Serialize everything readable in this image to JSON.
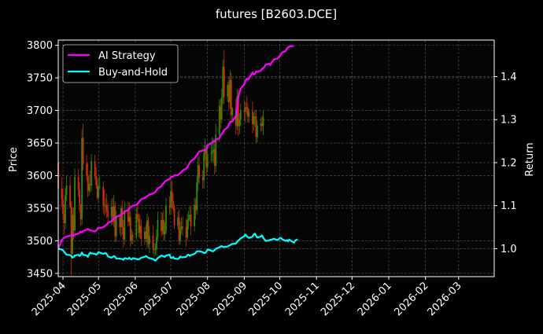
{
  "chart_data": {
    "type": "line",
    "title": "futures [B2603.DCE]",
    "ylabel": "Price",
    "y2label": "Return",
    "ylim": [
      3445,
      3808
    ],
    "y2lim": [
      0.935,
      1.485
    ],
    "xlim": [
      "2025-03-28",
      "2026-03-31"
    ],
    "grid": true,
    "legend_position": "top-left",
    "x_ticks": [
      "2025-04-01",
      "2025-05-01",
      "2025-06-01",
      "2025-07-01",
      "2025-08-01",
      "2025-09-01",
      "2025-10-01",
      "2025-11-01",
      "2025-12-01",
      "2026-01-01",
      "2026-02-01",
      "2026-03-01"
    ],
    "x_tick_labels": [
      "2025-04",
      "2025-05",
      "2025-06",
      "2025-07",
      "2025-08",
      "2025-09",
      "2025-10",
      "2025-11",
      "2025-12",
      "2026-01",
      "2026-02",
      "2026-03"
    ],
    "y_ticks": [
      3450,
      3500,
      3550,
      3600,
      3650,
      3700,
      3750,
      3800
    ],
    "y2_ticks": [
      1.0,
      1.1,
      1.2,
      1.3,
      1.4
    ],
    "y2_tick_labels": [
      "1.0",
      "1.1",
      "1.2",
      "1.3",
      "1.4"
    ],
    "colors": {
      "up": "#2e8b00",
      "down": "#d42a10",
      "ai": "#ff00ff",
      "bh": "#00ffff"
    },
    "candles": {
      "start": "2025-03-28",
      "open": [
        3620,
        3580,
        3564,
        3541,
        3527,
        3570,
        3585,
        3552,
        3480,
        3540,
        3516,
        3598,
        3578,
        3556,
        3533,
        3658,
        3618,
        3600,
        3577,
        3587,
        3585,
        3622,
        3599,
        3586,
        3566,
        3583,
        3583,
        3555,
        3553,
        3555,
        3546,
        3537,
        3552,
        3530,
        3553,
        3507,
        3536,
        3521,
        3550,
        3521,
        3502,
        3547,
        3529,
        3537,
        3500,
        3509,
        3506,
        3541,
        3535,
        3512,
        3523,
        3503,
        3514,
        3503,
        3531,
        3495,
        3508,
        3487,
        3487,
        3487,
        3506,
        3532,
        3515,
        3532,
        3510,
        3516,
        3553,
        3551,
        3576,
        3561,
        3550,
        3524,
        3536,
        3500,
        3517,
        3522,
        3521,
        3505,
        3531,
        3534,
        3540,
        3522,
        3555,
        3547,
        3590,
        3616,
        3597,
        3593,
        3635,
        3641,
        3612,
        3633,
        3634,
        3637,
        3640,
        3615,
        3663,
        3707,
        3686,
        3720,
        3767,
        3721,
        3739,
        3713,
        3747,
        3693,
        3703,
        3676,
        3722,
        3676,
        3686,
        3700,
        3698,
        3705,
        3704,
        3690,
        3698,
        3679,
        3691,
        3691,
        3659,
        3677,
        3680,
        3676
      ],
      "close": [
        3580,
        3564,
        3541,
        3527,
        3570,
        3585,
        3552,
        3480,
        3540,
        3516,
        3598,
        3578,
        3556,
        3533,
        3658,
        3618,
        3600,
        3577,
        3587,
        3585,
        3622,
        3599,
        3586,
        3566,
        3583,
        3583,
        3555,
        3553,
        3555,
        3546,
        3537,
        3552,
        3530,
        3553,
        3507,
        3536,
        3521,
        3550,
        3521,
        3502,
        3547,
        3529,
        3537,
        3500,
        3509,
        3506,
        3541,
        3535,
        3512,
        3523,
        3503,
        3514,
        3503,
        3531,
        3495,
        3508,
        3487,
        3487,
        3487,
        3506,
        3532,
        3515,
        3532,
        3510,
        3516,
        3553,
        3551,
        3576,
        3561,
        3550,
        3524,
        3536,
        3500,
        3517,
        3522,
        3521,
        3505,
        3531,
        3534,
        3540,
        3522,
        3555,
        3547,
        3590,
        3616,
        3597,
        3593,
        3635,
        3641,
        3612,
        3633,
        3634,
        3637,
        3640,
        3615,
        3663,
        3707,
        3686,
        3720,
        3767,
        3721,
        3739,
        3713,
        3747,
        3693,
        3703,
        3676,
        3722,
        3676,
        3686,
        3700,
        3698,
        3705,
        3704,
        3690,
        3698,
        3679,
        3691,
        3691,
        3659,
        3677,
        3680,
        3676,
        3690
      ],
      "high": [
        3634,
        3597,
        3581,
        3556,
        3581,
        3600,
        3599,
        3561,
        3552,
        3551,
        3611,
        3610,
        3590,
        3557,
        3671,
        3680,
        3632,
        3620,
        3602,
        3608,
        3633,
        3632,
        3613,
        3596,
        3597,
        3600,
        3591,
        3578,
        3566,
        3572,
        3558,
        3564,
        3566,
        3570,
        3560,
        3546,
        3540,
        3554,
        3562,
        3532,
        3560,
        3560,
        3559,
        3548,
        3518,
        3514,
        3552,
        3558,
        3542,
        3539,
        3533,
        3521,
        3525,
        3542,
        3537,
        3523,
        3524,
        3497,
        3496,
        3517,
        3545,
        3544,
        3543,
        3547,
        3528,
        3566,
        3568,
        3600,
        3592,
        3573,
        3555,
        3545,
        3548,
        3530,
        3535,
        3538,
        3533,
        3541,
        3546,
        3553,
        3554,
        3566,
        3565,
        3599,
        3628,
        3630,
        3608,
        3647,
        3656,
        3648,
        3644,
        3649,
        3659,
        3657,
        3655,
        3680,
        3717,
        3718,
        3733,
        3778,
        3793,
        3744,
        3751,
        3762,
        3758,
        3705,
        3718,
        3732,
        3733,
        3696,
        3711,
        3715,
        3713,
        3722,
        3711,
        3702,
        3714,
        3697,
        3701,
        3700,
        3684,
        3689,
        3693,
        3700
      ],
      "low": [
        3567,
        3553,
        3532,
        3510,
        3518,
        3561,
        3550,
        3448,
        3474,
        3502,
        3505,
        3568,
        3544,
        3523,
        3524,
        3608,
        3592,
        3567,
        3569,
        3574,
        3576,
        3594,
        3580,
        3563,
        3558,
        3578,
        3542,
        3539,
        3542,
        3535,
        3530,
        3524,
        3525,
        3521,
        3498,
        3499,
        3510,
        3506,
        3509,
        3490,
        3495,
        3522,
        3523,
        3491,
        3495,
        3495,
        3501,
        3529,
        3505,
        3503,
        3492,
        3494,
        3498,
        3490,
        3488,
        3481,
        3480,
        3475,
        3478,
        3478,
        3501,
        3506,
        3509,
        3500,
        3501,
        3510,
        3540,
        3540,
        3549,
        3546,
        3518,
        3517,
        3494,
        3494,
        3510,
        3508,
        3491,
        3500,
        3518,
        3530,
        3508,
        3514,
        3533,
        3540,
        3576,
        3587,
        3580,
        3580,
        3624,
        3600,
        3605,
        3620,
        3622,
        3621,
        3602,
        3605,
        3652,
        3672,
        3680,
        3710,
        3710,
        3713,
        3702,
        3702,
        3679,
        3683,
        3663,
        3670,
        3661,
        3664,
        3676,
        3684,
        3681,
        3694,
        3681,
        3681,
        3665,
        3669,
        3675,
        3650,
        3651,
        3668,
        3668,
        3662
      ]
    },
    "series": [
      {
        "name": "AI Strategy",
        "values": [
          1.0,
          1.02,
          1.023,
          1.025,
          1.027,
          1.028,
          1.03,
          1.032,
          1.034,
          1.03,
          1.033,
          1.035,
          1.037,
          1.04,
          1.038,
          1.041,
          1.044,
          1.046,
          1.044,
          1.043,
          1.042,
          1.04,
          1.042,
          1.046,
          1.049,
          1.048,
          1.05,
          1.052,
          1.054,
          1.056,
          1.06,
          1.064,
          1.068,
          1.07,
          1.072,
          1.074,
          1.077,
          1.079,
          1.081,
          1.083,
          1.086,
          1.09,
          1.094,
          1.096,
          1.098,
          1.1,
          1.102,
          1.105,
          1.108,
          1.111,
          1.115,
          1.118,
          1.12,
          1.122,
          1.124,
          1.126,
          1.128,
          1.13,
          1.132,
          1.136,
          1.14,
          1.145,
          1.15,
          1.152,
          1.156,
          1.158,
          1.162,
          1.166,
          1.167,
          1.168,
          1.17,
          1.171,
          1.173,
          1.176,
          1.178,
          1.182,
          1.186,
          1.19,
          1.195,
          1.199,
          1.204,
          1.209,
          1.214,
          1.218,
          1.222,
          1.226,
          1.228,
          1.229,
          1.229,
          1.232,
          1.24,
          1.245,
          1.246,
          1.25,
          1.25,
          1.253,
          1.257,
          1.263,
          1.267,
          1.27,
          1.276,
          1.282,
          1.289,
          1.295,
          1.295,
          1.296,
          1.308,
          1.33,
          1.352,
          1.363,
          1.372,
          1.382,
          1.39,
          1.395,
          1.393,
          1.396,
          1.41,
          1.405,
          1.407,
          1.412,
          1.411,
          1.414,
          1.418,
          1.42,
          1.422,
          1.428,
          1.43,
          1.427,
          1.433,
          1.436,
          1.44,
          1.442,
          1.445,
          1.448,
          1.452,
          1.456,
          1.46,
          1.465,
          1.468,
          1.47,
          1.471,
          1.471
        ]
      },
      {
        "name": "Buy-and-Hold",
        "values": [
          1.0,
          0.998,
          0.996,
          0.993,
          0.989,
          0.986,
          0.985,
          0.983,
          0.979,
          0.981,
          0.984,
          0.986,
          0.983,
          0.986,
          0.991,
          0.986,
          0.984,
          0.981,
          0.987,
          0.991,
          0.989,
          0.988,
          0.986,
          0.988,
          0.992,
          0.991,
          0.988,
          0.989,
          0.99,
          0.987,
          0.982,
          0.979,
          0.981,
          0.983,
          0.981,
          0.977,
          0.977,
          0.976,
          0.976,
          0.974,
          0.978,
          0.976,
          0.979,
          0.976,
          0.975,
          0.978,
          0.976,
          0.975,
          0.975,
          0.977,
          0.979,
          0.981,
          0.983,
          0.981,
          0.979,
          0.978,
          0.976,
          0.974,
          0.972,
          0.975,
          0.978,
          0.984,
          0.983,
          0.982,
          0.981,
          0.984,
          0.986,
          0.979,
          0.978,
          0.981,
          0.977,
          0.976,
          0.978,
          0.982,
          0.98,
          0.98,
          0.981,
          0.985,
          0.986,
          0.983,
          0.985,
          0.988,
          0.99,
          0.994,
          0.994,
          0.994,
          0.992,
          0.99,
          0.99,
          0.993,
          0.998,
          0.996,
          0.994,
          0.994,
          0.997,
          1.0,
          1.003,
          1.005,
          1.006,
          1.004,
          1.004,
          1.005,
          1.007,
          1.008,
          1.01,
          1.011,
          1.012,
          1.016,
          1.019,
          1.021,
          1.024,
          1.029,
          1.033,
          1.029,
          1.027,
          1.025,
          1.028,
          1.033,
          1.035,
          1.03,
          1.026,
          1.028,
          1.031,
          1.025,
          1.022,
          1.018,
          1.019,
          1.021,
          1.021,
          1.022,
          1.023,
          1.02,
          1.022,
          1.024,
          1.025,
          1.022,
          1.018,
          1.02,
          1.017,
          1.021,
          1.019,
          1.014,
          1.019,
          1.02,
          1.022
        ]
      }
    ]
  }
}
